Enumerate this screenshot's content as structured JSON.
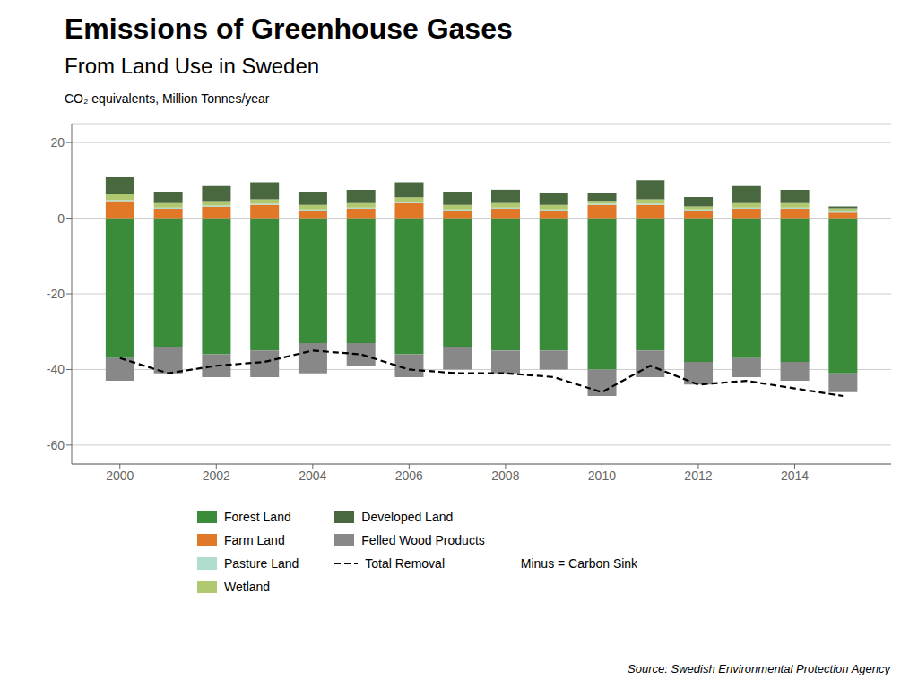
{
  "chart_data": {
    "type": "bar",
    "title": "Emissions of Greenhouse Gases",
    "subtitle": "From Land Use in Sweden",
    "y_label": "CO₂ equivalents, Million Tonnes/year",
    "x": [
      2000,
      2001,
      2002,
      2003,
      2004,
      2005,
      2006,
      2007,
      2008,
      2009,
      2010,
      2011,
      2012,
      2013,
      2014,
      2015
    ],
    "xlim": [
      1999,
      2016
    ],
    "xticks": [
      2000,
      2002,
      2004,
      2006,
      2008,
      2010,
      2012,
      2014
    ],
    "ylim": [
      -65,
      25
    ],
    "yticks": [
      -60,
      -40,
      -20,
      0,
      20
    ],
    "grid": true,
    "stacked": true,
    "legend": "bottom",
    "series": [
      {
        "name": "Forest Land",
        "type": "bar",
        "color": "#3a8c3a",
        "values": [
          -37,
          -34,
          -36,
          -35,
          -33,
          -33,
          -36,
          -34,
          -35,
          -35,
          -40,
          -35,
          -38,
          -37,
          -38,
          -41
        ]
      },
      {
        "name": "Farm Land",
        "type": "bar",
        "color": "#e07828",
        "values": [
          4.5,
          2.5,
          3.0,
          3.5,
          2.0,
          2.5,
          4.0,
          2.0,
          2.5,
          2.0,
          3.5,
          3.5,
          2.0,
          2.5,
          2.5,
          1.5
        ]
      },
      {
        "name": "Pasture Land",
        "type": "bar",
        "color": "#b0ddd0",
        "values": [
          0.3,
          0.3,
          0.3,
          0.3,
          0.3,
          0.3,
          0.3,
          0.3,
          0.3,
          0.3,
          0.3,
          0.3,
          0.3,
          0.3,
          0.3,
          0.3
        ]
      },
      {
        "name": "Wetland",
        "type": "bar",
        "color": "#b0c870",
        "values": [
          1.5,
          1.2,
          1.2,
          1.2,
          1.2,
          1.2,
          1.2,
          1.2,
          1.2,
          1.2,
          0.8,
          1.2,
          0.8,
          1.2,
          1.2,
          0.8
        ]
      },
      {
        "name": "Developed Land",
        "type": "bar",
        "color": "#4a6840",
        "values": [
          4.5,
          3.0,
          4.0,
          4.5,
          3.5,
          3.5,
          4.0,
          3.5,
          3.5,
          3.0,
          2.0,
          5.0,
          2.5,
          4.5,
          3.5,
          0.5
        ]
      },
      {
        "name": "Felled Wood Products",
        "type": "bar",
        "color": "#888888",
        "values": [
          -6,
          -7,
          -6,
          -7,
          -8,
          -6,
          -6,
          -6,
          -6,
          -5,
          -7,
          -7,
          -6,
          -5,
          -5,
          -5
        ]
      },
      {
        "name": "Total Removal",
        "type": "line",
        "line_style": "dashed",
        "color": "#000000",
        "values": [
          -37,
          -41,
          -39,
          -38,
          -35,
          -36,
          -40,
          -41,
          -41,
          -42,
          -46,
          -39,
          -44,
          -43,
          -45,
          -47
        ]
      }
    ],
    "annotations": [
      "Minus = Carbon Sink",
      "Source: Swedish Environmental Protection Agency"
    ]
  }
}
